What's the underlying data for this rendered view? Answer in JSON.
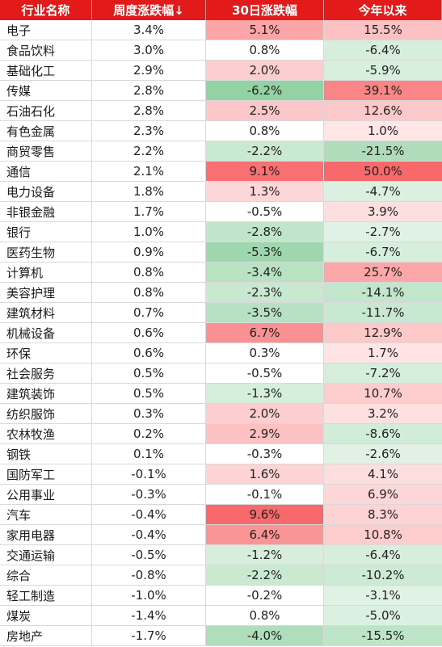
{
  "columns": [
    "行业名称",
    "周度涨跌幅↓",
    "30日涨跌幅",
    "今年以来"
  ],
  "rows": [
    [
      "电子",
      "3.4%",
      "5.1%",
      "15.5%"
    ],
    [
      "食品饮料",
      "3.0%",
      "0.8%",
      "-6.4%"
    ],
    [
      "基础化工",
      "2.9%",
      "2.0%",
      "-5.9%"
    ],
    [
      "传媒",
      "2.8%",
      "-6.2%",
      "39.1%"
    ],
    [
      "石油石化",
      "2.8%",
      "2.5%",
      "12.6%"
    ],
    [
      "有色金属",
      "2.3%",
      "0.8%",
      "1.0%"
    ],
    [
      "商贸零售",
      "2.2%",
      "-2.2%",
      "-21.5%"
    ],
    [
      "通信",
      "2.1%",
      "9.1%",
      "50.0%"
    ],
    [
      "电力设备",
      "1.8%",
      "1.3%",
      "-4.7%"
    ],
    [
      "非银金融",
      "1.7%",
      "-0.5%",
      "3.9%"
    ],
    [
      "银行",
      "1.0%",
      "-2.8%",
      "-2.7%"
    ],
    [
      "医药生物",
      "0.9%",
      "-5.3%",
      "-6.7%"
    ],
    [
      "计算机",
      "0.8%",
      "-3.4%",
      "25.7%"
    ],
    [
      "美容护理",
      "0.8%",
      "-2.3%",
      "-14.1%"
    ],
    [
      "建筑材料",
      "0.7%",
      "-3.5%",
      "-11.7%"
    ],
    [
      "机械设备",
      "0.6%",
      "6.7%",
      "12.9%"
    ],
    [
      "环保",
      "0.6%",
      "0.3%",
      "1.7%"
    ],
    [
      "社会服务",
      "0.5%",
      "-0.5%",
      "-7.2%"
    ],
    [
      "建筑装饰",
      "0.5%",
      "-1.3%",
      "10.7%"
    ],
    [
      "纺织服饰",
      "0.3%",
      "2.0%",
      "3.2%"
    ],
    [
      "农林牧渔",
      "0.2%",
      "2.9%",
      "-8.6%"
    ],
    [
      "钢铁",
      "0.1%",
      "-0.3%",
      "-2.6%"
    ],
    [
      "国防军工",
      "-0.1%",
      "1.6%",
      "4.1%"
    ],
    [
      "公用事业",
      "-0.3%",
      "-0.1%",
      "6.9%"
    ],
    [
      "汽车",
      "-0.4%",
      "9.6%",
      "8.3%"
    ],
    [
      "家用电器",
      "-0.4%",
      "6.4%",
      "10.8%"
    ],
    [
      "交通运输",
      "-0.5%",
      "-1.2%",
      "-6.4%"
    ],
    [
      "综合",
      "-0.8%",
      "-2.2%",
      "-10.2%"
    ],
    [
      "轻工制造",
      "-1.0%",
      "-0.2%",
      "-3.1%"
    ],
    [
      "煤炭",
      "-1.4%",
      "0.8%",
      "-5.0%"
    ],
    [
      "房地产",
      "-1.7%",
      "-4.0%",
      "-15.5%"
    ]
  ],
  "colors": {
    "header_bg": "#e21a1a",
    "header_text": "#ffffff",
    "positive": "#f8696b",
    "negative": "#63be7b",
    "neutral": "#ffffff"
  },
  "chart_data": {
    "type": "table",
    "columns": [
      "行业名称",
      "周度涨跌幅↓",
      "30日涨跌幅",
      "今年以来"
    ],
    "categories": [
      "电子",
      "食品饮料",
      "基础化工",
      "传媒",
      "石油石化",
      "有色金属",
      "商贸零售",
      "通信",
      "电力设备",
      "非银金融",
      "银行",
      "医药生物",
      "计算机",
      "美容护理",
      "建筑材料",
      "机械设备",
      "环保",
      "社会服务",
      "建筑装饰",
      "纺织服饰",
      "农林牧渔",
      "钢铁",
      "国防军工",
      "公用事业",
      "汽车",
      "家用电器",
      "交通运输",
      "综合",
      "轻工制造",
      "煤炭",
      "房地产"
    ],
    "series": [
      {
        "name": "周度涨跌幅↓",
        "values": [
          3.4,
          3.0,
          2.9,
          2.8,
          2.8,
          2.3,
          2.2,
          2.1,
          1.8,
          1.7,
          1.0,
          0.9,
          0.8,
          0.8,
          0.7,
          0.6,
          0.6,
          0.5,
          0.5,
          0.3,
          0.2,
          0.1,
          -0.1,
          -0.3,
          -0.4,
          -0.4,
          -0.5,
          -0.8,
          -1.0,
          -1.4,
          -1.7
        ]
      },
      {
        "name": "30日涨跌幅",
        "values": [
          5.1,
          0.8,
          2.0,
          -6.2,
          2.5,
          0.8,
          -2.2,
          9.1,
          1.3,
          -0.5,
          -2.8,
          -5.3,
          -3.4,
          -2.3,
          -3.5,
          6.7,
          0.3,
          -0.5,
          -1.3,
          2.0,
          2.9,
          -0.3,
          1.6,
          -0.1,
          9.6,
          6.4,
          -1.2,
          -2.2,
          -0.2,
          0.8,
          -4.0
        ]
      },
      {
        "name": "今年以来",
        "values": [
          15.5,
          -6.4,
          -5.9,
          39.1,
          12.6,
          1.0,
          -21.5,
          50.0,
          -4.7,
          3.9,
          -2.7,
          -6.7,
          25.7,
          -14.1,
          -11.7,
          12.9,
          1.7,
          -7.2,
          10.7,
          3.2,
          -8.6,
          -2.6,
          4.1,
          6.9,
          8.3,
          10.8,
          -6.4,
          -10.2,
          -3.1,
          -5.0,
          -15.5
        ]
      }
    ]
  }
}
